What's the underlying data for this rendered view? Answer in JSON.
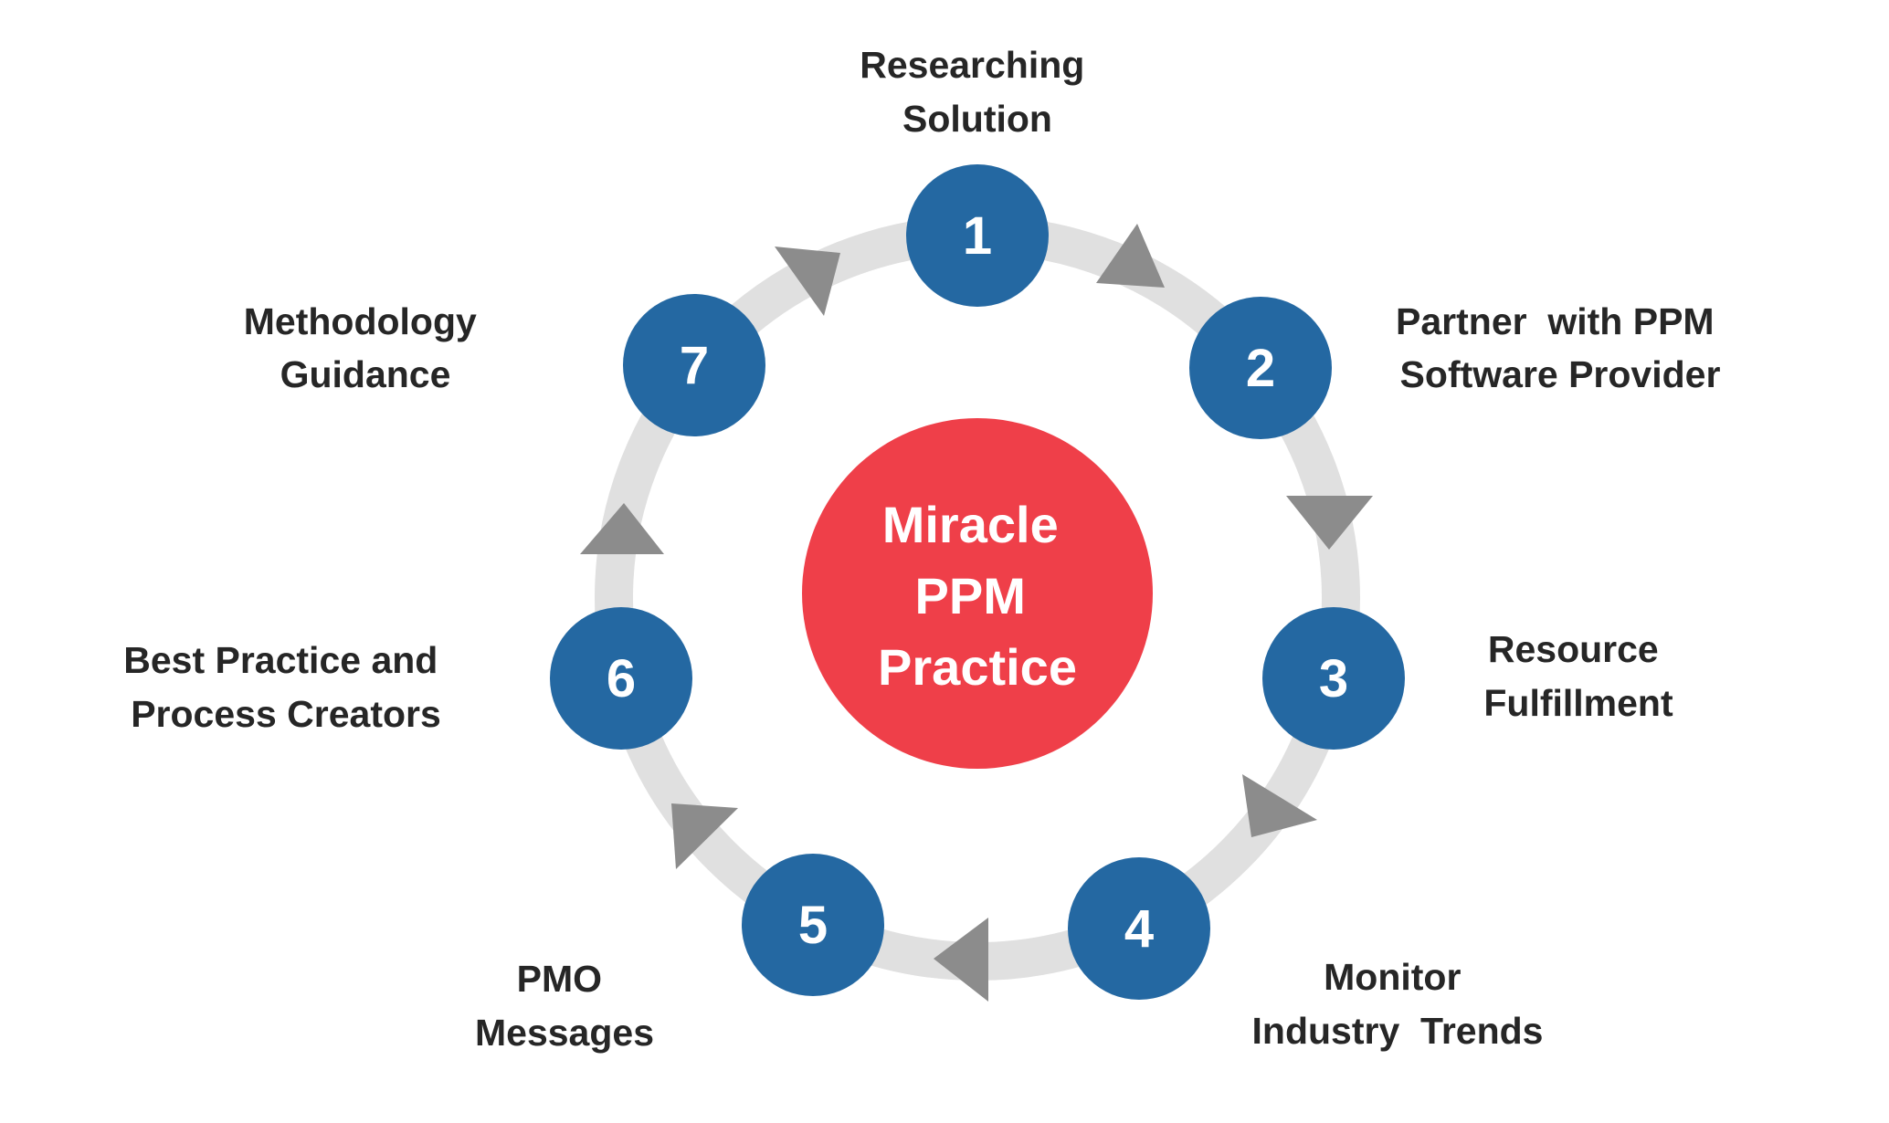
{
  "center": {
    "lines": [
      "Miracle",
      "PPM",
      "Practice"
    ]
  },
  "steps": [
    {
      "number": "1",
      "label_lines": [
        "Researching",
        "Solution"
      ]
    },
    {
      "number": "2",
      "label_lines": [
        "Partner  with PPM",
        "Software Provider"
      ]
    },
    {
      "number": "3",
      "label_lines": [
        "Resource",
        "Fulfillment"
      ]
    },
    {
      "number": "4",
      "label_lines": [
        "Monitor",
        "Industry  Trends"
      ]
    },
    {
      "number": "5",
      "label_lines": [
        "PMO",
        "Messages"
      ]
    },
    {
      "number": "6",
      "label_lines": [
        "Best Practice and",
        "Process Creators"
      ]
    },
    {
      "number": "7",
      "label_lines": [
        "Methodology",
        "Guidance"
      ]
    }
  ],
  "colors": {
    "ring": "#e0e0e0",
    "step_circle": "#2468a2",
    "center_circle": "#ef3f49",
    "arrow": "#8c8c8c",
    "label_text": "#262626",
    "circle_text": "#ffffff"
  }
}
